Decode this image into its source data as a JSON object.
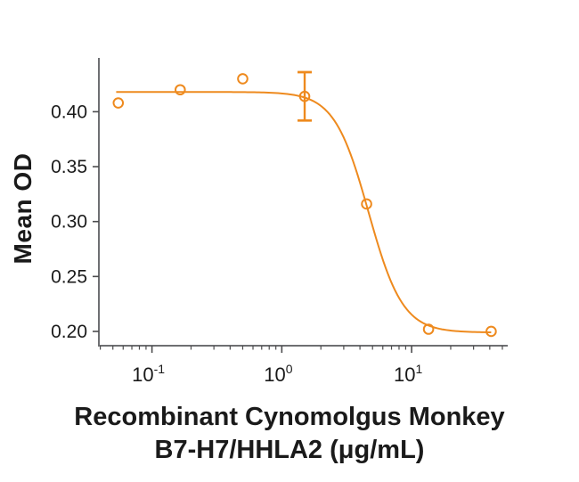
{
  "figure": {
    "background": "#ffffff",
    "y_axis_label": "Mean OD",
    "caption_line1": "Recombinant Cynomolgus Monkey",
    "caption_line2": "B7-H7/HHLA2 (μg/mL)"
  },
  "chart_data": {
    "type": "scatter",
    "title": "",
    "xlabel": "Recombinant Cynomolgus Monkey B7-H7/HHLA2 (μg/mL)",
    "ylabel": "Mean OD",
    "x_scale": "log10",
    "xlim": [
      0.039,
      55
    ],
    "ylim": [
      0.187,
      0.449
    ],
    "grid": false,
    "legend_position": "none",
    "points": [
      {
        "x": 0.055,
        "y": 0.408
      },
      {
        "x": 0.165,
        "y": 0.42
      },
      {
        "x": 0.5,
        "y": 0.43
      },
      {
        "x": 1.5,
        "y": 0.414
      },
      {
        "x": 4.5,
        "y": 0.316
      },
      {
        "x": 13.5,
        "y": 0.202
      },
      {
        "x": 41,
        "y": 0.2
      }
    ],
    "error_bar": {
      "x": 1.5,
      "y": 0.414,
      "low": 0.392,
      "high": 0.436
    },
    "fit_curve": {
      "model": "4PL",
      "top": 0.418,
      "bottom": 0.199,
      "ec50": 4.66,
      "hill": 3.3,
      "x_start": 0.053,
      "x_end": 41
    },
    "y_ticks": [
      {
        "value": 0.4,
        "label": "0.40"
      },
      {
        "value": 0.35,
        "label": "0.35"
      },
      {
        "value": 0.3,
        "label": "0.30"
      },
      {
        "value": 0.25,
        "label": "0.25"
      },
      {
        "value": 0.2,
        "label": "0.20"
      }
    ],
    "x_major_ticks": [
      {
        "value": 0.1,
        "base": "10",
        "exp": "-1"
      },
      {
        "value": 1,
        "base": "10",
        "exp": "0"
      },
      {
        "value": 10,
        "base": "10",
        "exp": "1"
      }
    ],
    "colors": {
      "series": "#EE8A1E",
      "axis": "#6E6F72",
      "tick": "#4C4C4E",
      "text": "#1A1A1A"
    }
  }
}
